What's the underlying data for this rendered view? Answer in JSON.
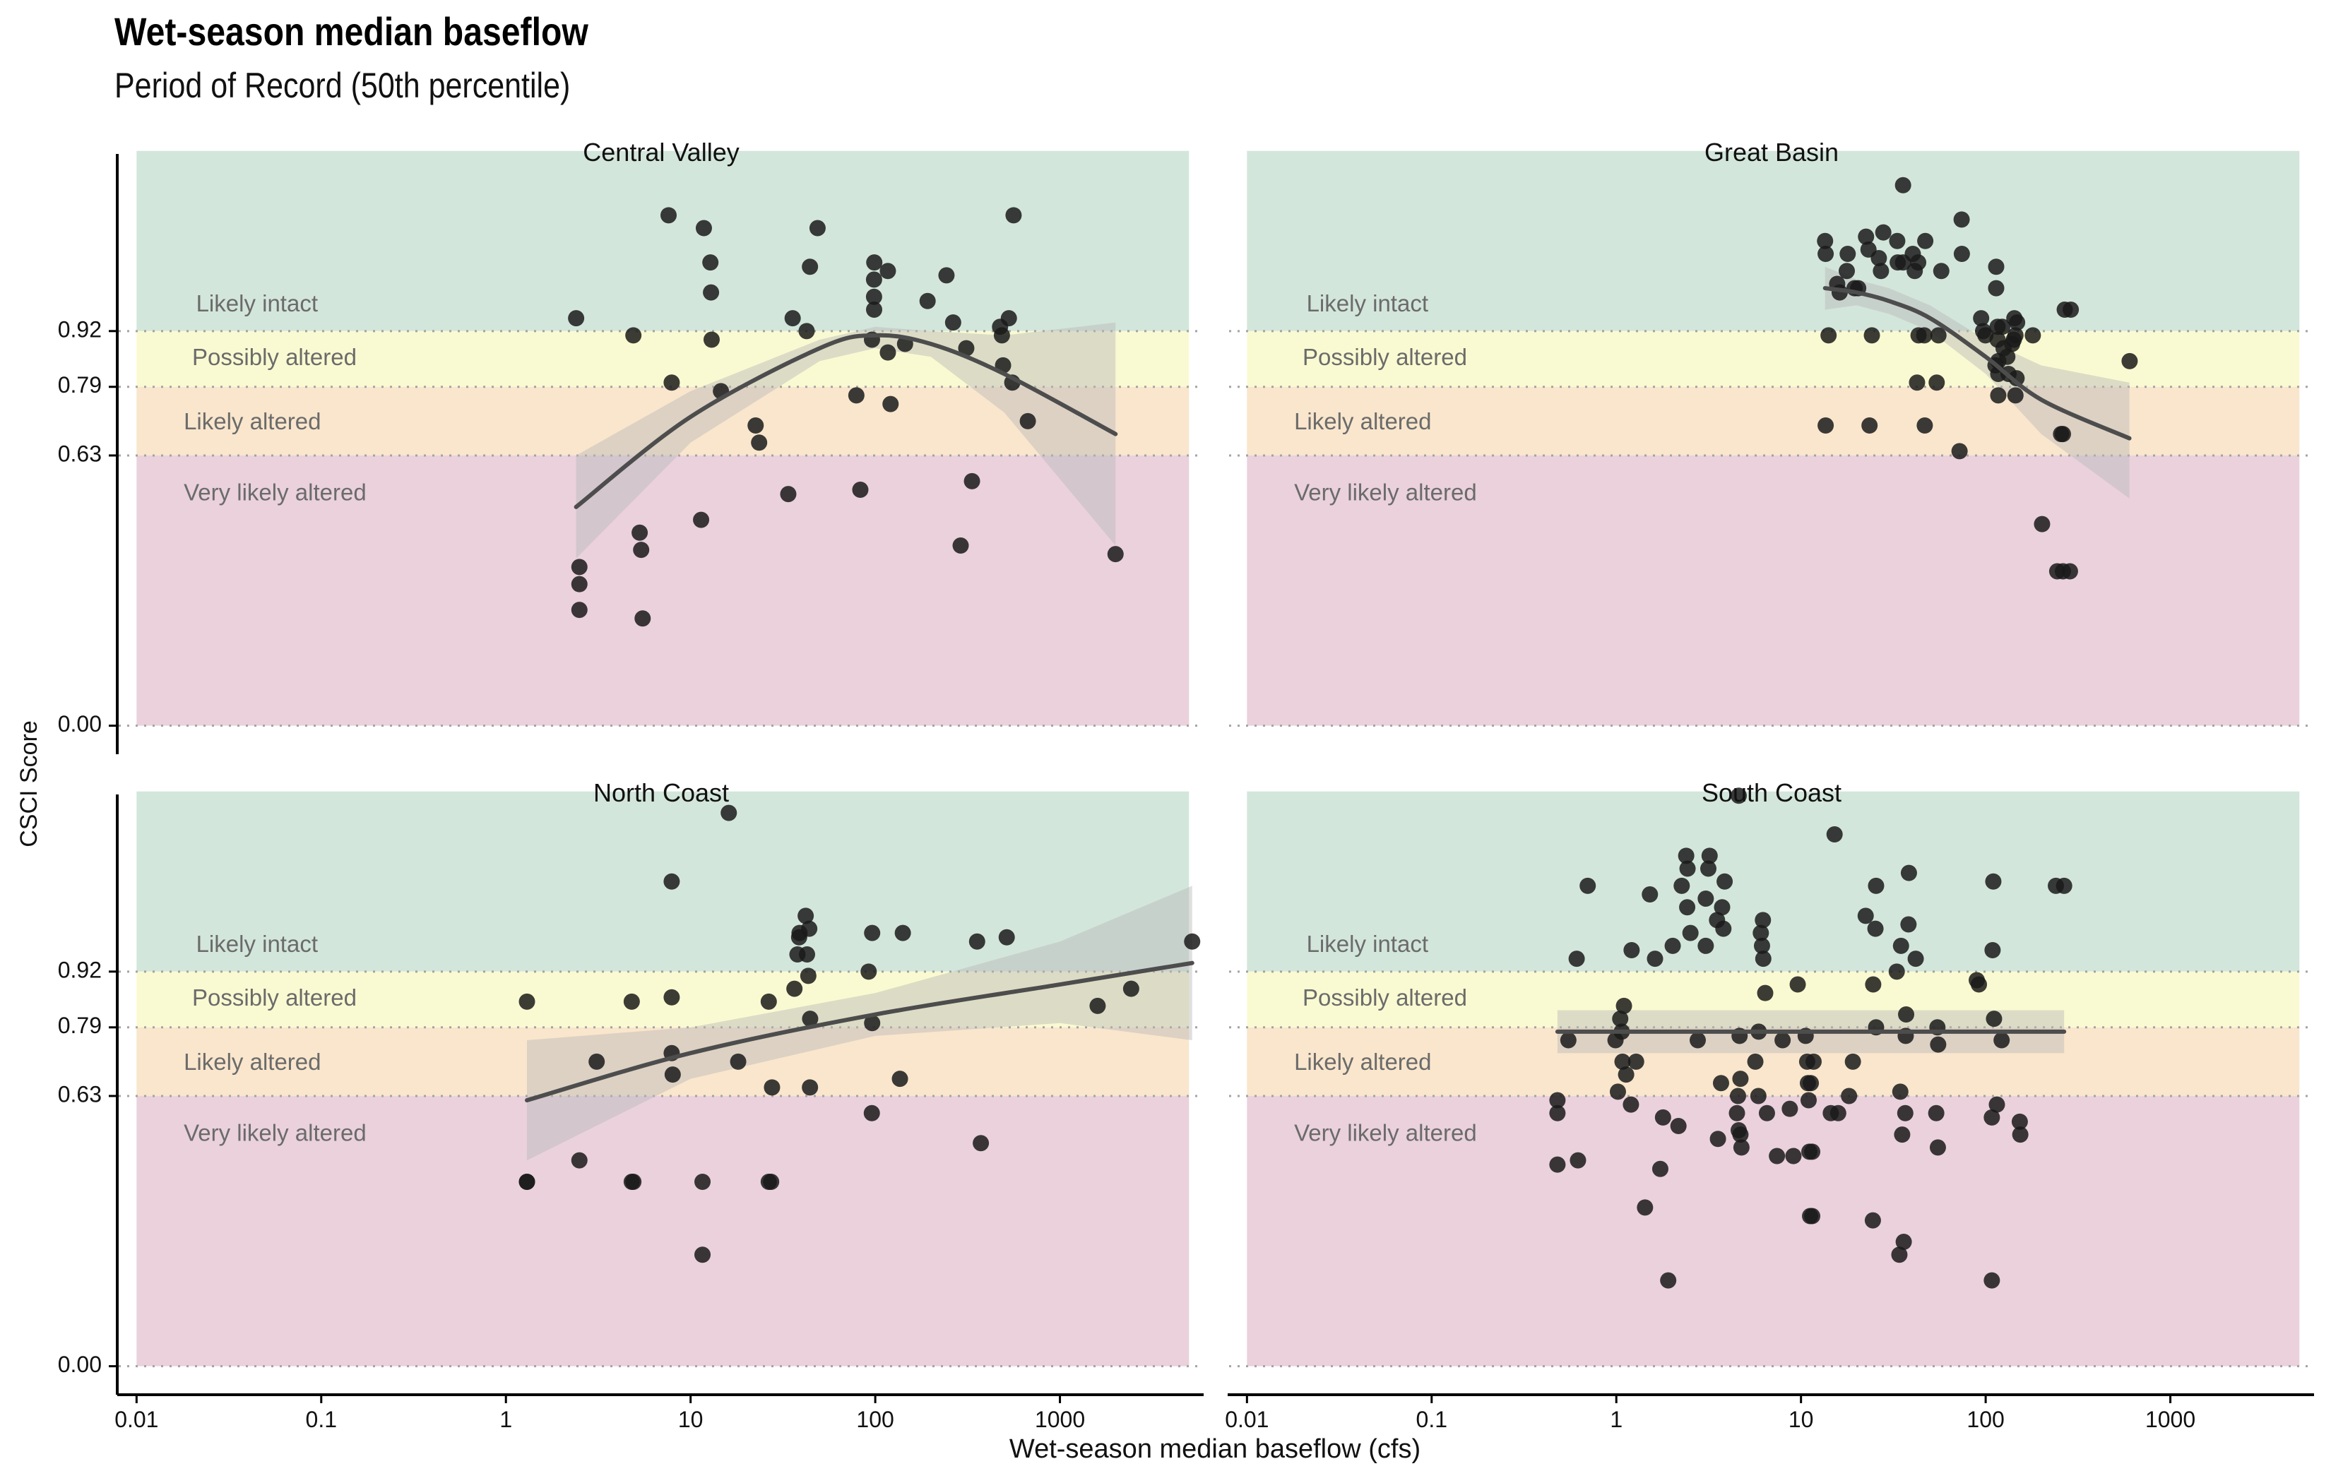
{
  "title": "Wet-season median baseflow",
  "subtitle": "Period of Record (50th percentile)",
  "chart_data": {
    "type": "scatter",
    "xlabel": "Wet-season median baseflow (cfs)",
    "ylabel": "CSCI Score",
    "x_scale": "log10",
    "xlim": [
      0.008,
      6000
    ],
    "x_ticks": [
      0.01,
      0.1,
      1,
      10,
      100,
      1000
    ],
    "x_tick_labels": [
      "0.01",
      "0.1",
      "1",
      "10",
      "100",
      "1000"
    ],
    "ylim": [
      -0.05,
      1.3
    ],
    "y_ticks": [
      0.0,
      0.63,
      0.79,
      0.92
    ],
    "y_tick_labels": [
      "0.00",
      "0.63",
      "0.79",
      "0.92"
    ],
    "thresholds": [
      0.0,
      0.63,
      0.79,
      0.92
    ],
    "zones": [
      {
        "label": "Likely intact",
        "from": 0.92,
        "to": 1.34,
        "color": "#d3e6db"
      },
      {
        "label": "Possibly altered",
        "from": 0.79,
        "to": 0.92,
        "color": "#fafad2"
      },
      {
        "label": "Likely altered",
        "from": 0.63,
        "to": 0.79,
        "color": "#f9e6cc"
      },
      {
        "label": "Very likely altered",
        "from": 0.0,
        "to": 0.63,
        "color": "#ead1dc"
      }
    ],
    "panels": [
      {
        "title": "Central Valley",
        "points": [
          [
            2.4,
            0.95
          ],
          [
            2.5,
            0.37
          ],
          [
            2.5,
            0.33
          ],
          [
            2.5,
            0.27
          ],
          [
            4.9,
            0.91
          ],
          [
            5.3,
            0.45
          ],
          [
            5.4,
            0.41
          ],
          [
            5.5,
            0.25
          ],
          [
            7.6,
            1.19
          ],
          [
            7.9,
            0.8
          ],
          [
            11.4,
            0.48
          ],
          [
            11.8,
            1.16
          ],
          [
            13,
            0.9
          ],
          [
            12.8,
            1.08
          ],
          [
            12.9,
            1.01
          ],
          [
            14.6,
            0.78
          ],
          [
            22.5,
            0.7
          ],
          [
            23.5,
            0.66
          ],
          [
            33.8,
            0.54
          ],
          [
            35.7,
            0.95
          ],
          [
            42.5,
            0.92
          ],
          [
            44.3,
            1.07
          ],
          [
            48.7,
            1.16
          ],
          [
            79,
            0.77
          ],
          [
            83,
            0.55
          ],
          [
            96,
            0.9
          ],
          [
            98.5,
            1.04
          ],
          [
            98.8,
            1.08
          ],
          [
            98.5,
            1.0
          ],
          [
            98.6,
            0.97
          ],
          [
            117,
            0.87
          ],
          [
            117,
            1.06
          ],
          [
            121,
            0.75
          ],
          [
            145,
            0.89
          ],
          [
            192,
            0.99
          ],
          [
            243,
            1.05
          ],
          [
            264,
            0.94
          ],
          [
            311,
            0.88
          ],
          [
            290,
            0.42
          ],
          [
            334,
            0.57
          ],
          [
            474,
            0.93
          ],
          [
            485,
            0.91
          ],
          [
            492,
            0.84
          ],
          [
            529,
            0.95
          ],
          [
            552,
            0.8
          ],
          [
            561,
            1.19
          ],
          [
            670,
            0.71
          ],
          [
            2000,
            0.4
          ]
        ],
        "trend": {
          "x": [
            2.4,
            10,
            50,
            100,
            200,
            500,
            2000
          ],
          "y": [
            0.51,
            0.72,
            0.88,
            0.91,
            0.89,
            0.82,
            0.68
          ]
        },
        "band": {
          "upper": [
            0.63,
            0.78,
            0.9,
            0.93,
            0.92,
            0.91,
            0.94
          ],
          "lower": [
            0.39,
            0.66,
            0.85,
            0.88,
            0.86,
            0.73,
            0.42
          ]
        }
      },
      {
        "title": "Great Basin",
        "points": [
          [
            13.5,
            1.13
          ],
          [
            13.6,
            1.1
          ],
          [
            14.1,
            0.91
          ],
          [
            13.6,
            0.7
          ],
          [
            15.7,
            1.03
          ],
          [
            16.2,
            1.01
          ],
          [
            17.7,
            1.06
          ],
          [
            17.9,
            1.1
          ],
          [
            19.5,
            1.02
          ],
          [
            20.4,
            1.02
          ],
          [
            23.2,
            1.11
          ],
          [
            22.5,
            1.14
          ],
          [
            24.2,
            0.91
          ],
          [
            23.5,
            0.7
          ],
          [
            26.4,
            1.09
          ],
          [
            27.9,
            1.15
          ],
          [
            27.1,
            1.06
          ],
          [
            33.2,
            1.13
          ],
          [
            33.4,
            1.08
          ],
          [
            35.7,
            1.26
          ],
          [
            35.7,
            1.08
          ],
          [
            40.3,
            1.1
          ],
          [
            41.3,
            1.06
          ],
          [
            43.1,
            1.08
          ],
          [
            43.3,
            0.91
          ],
          [
            42.5,
            0.8
          ],
          [
            46.5,
            0.91
          ],
          [
            46.8,
            0.7
          ],
          [
            47.1,
            1.13
          ],
          [
            55.5,
            0.91
          ],
          [
            54.3,
            0.8
          ],
          [
            57.5,
            1.06
          ],
          [
            74.1,
            1.18
          ],
          [
            74.3,
            1.1
          ],
          [
            72.2,
            0.64
          ],
          [
            94.5,
            0.95
          ],
          [
            96.9,
            0.92
          ],
          [
            99.7,
            0.91
          ],
          [
            113,
            0.84
          ],
          [
            114,
            1.07
          ],
          [
            114,
            1.02
          ],
          [
            116,
            0.93
          ],
          [
            116,
            0.9
          ],
          [
            117,
            0.85
          ],
          [
            117,
            0.82
          ],
          [
            117,
            0.77
          ],
          [
            123,
            0.93
          ],
          [
            125,
            0.88
          ],
          [
            131,
            0.86
          ],
          [
            133,
            0.82
          ],
          [
            139,
            0.89
          ],
          [
            142,
            0.9
          ],
          [
            145,
            0.91
          ],
          [
            145,
            0.77
          ],
          [
            148,
            0.94
          ],
          [
            147,
            0.81
          ],
          [
            143,
            0.95
          ],
          [
            180,
            0.91
          ],
          [
            202,
            0.47
          ],
          [
            244,
            0.36
          ],
          [
            262,
            0.36
          ],
          [
            256,
            0.68
          ],
          [
            262,
            0.68
          ],
          [
            268,
            0.97
          ],
          [
            289,
            0.97
          ],
          [
            286,
            0.36
          ],
          [
            602,
            0.85
          ]
        ],
        "trend": {
          "x": [
            13.5,
            20,
            30,
            50,
            100,
            200,
            600
          ],
          "y": [
            1.02,
            1.01,
            0.99,
            0.95,
            0.86,
            0.76,
            0.67
          ]
        },
        "band": {
          "upper": [
            1.07,
            1.04,
            1.02,
            0.98,
            0.9,
            0.84,
            0.8
          ],
          "lower": [
            0.97,
            0.98,
            0.96,
            0.92,
            0.82,
            0.68,
            0.53
          ]
        }
      },
      {
        "title": "North Coast",
        "points": [
          [
            1.3,
            0.85
          ],
          [
            1.3,
            0.43
          ],
          [
            1.3,
            0.43
          ],
          [
            2.5,
            0.48
          ],
          [
            3.1,
            0.71
          ],
          [
            4.8,
            0.85
          ],
          [
            4.9,
            0.43
          ],
          [
            4.8,
            0.43
          ],
          [
            7.9,
            0.86
          ],
          [
            7.9,
            1.13
          ],
          [
            7.9,
            0.73
          ],
          [
            8,
            0.68
          ],
          [
            11.6,
            0.43
          ],
          [
            11.6,
            0.26
          ],
          [
            16.1,
            1.29
          ],
          [
            18.1,
            0.71
          ],
          [
            26.5,
            0.85
          ],
          [
            26.5,
            0.43
          ],
          [
            27.3,
            0.43
          ],
          [
            27.6,
            0.65
          ],
          [
            36.5,
            0.88
          ],
          [
            37.9,
            0.96
          ],
          [
            38.7,
            1.0
          ],
          [
            38.9,
            1.01
          ],
          [
            42.7,
            0.96
          ],
          [
            43.4,
            0.91
          ],
          [
            44.4,
            0.81
          ],
          [
            42,
            1.05
          ],
          [
            43.9,
            1.02
          ],
          [
            44.3,
            0.65
          ],
          [
            92.1,
            0.92
          ],
          [
            95.8,
            0.59
          ],
          [
            96.2,
            1.01
          ],
          [
            96.2,
            0.8
          ],
          [
            136,
            0.67
          ],
          [
            141,
            1.01
          ],
          [
            356,
            0.99
          ],
          [
            373,
            0.52
          ],
          [
            515,
            1.0
          ],
          [
            1600,
            0.84
          ],
          [
            2430,
            0.88
          ],
          [
            5200,
            0.99
          ]
        ],
        "trend": {
          "x": [
            1.3,
            10,
            100,
            1000,
            5200
          ],
          "y": [
            0.62,
            0.73,
            0.82,
            0.89,
            0.94
          ]
        },
        "band": {
          "upper": [
            0.76,
            0.79,
            0.87,
            0.99,
            1.12
          ],
          "lower": [
            0.48,
            0.67,
            0.77,
            0.8,
            0.76
          ]
        }
      },
      {
        "title": "South Coast",
        "points": [
          [
            0.48,
            0.62
          ],
          [
            0.48,
            0.59
          ],
          [
            0.48,
            0.47
          ],
          [
            0.55,
            0.76
          ],
          [
            0.61,
            0.95
          ],
          [
            0.62,
            0.48
          ],
          [
            0.7,
            1.12
          ],
          [
            0.99,
            0.76
          ],
          [
            1.02,
            0.64
          ],
          [
            1.1,
            0.84
          ],
          [
            1.08,
            0.71
          ],
          [
            1.05,
            0.81
          ],
          [
            1.07,
            0.78
          ],
          [
            1.13,
            0.68
          ],
          [
            1.21,
            0.97
          ],
          [
            1.2,
            0.61
          ],
          [
            1.28,
            0.71
          ],
          [
            1.43,
            0.37
          ],
          [
            1.52,
            1.1
          ],
          [
            1.62,
            0.95
          ],
          [
            1.73,
            0.46
          ],
          [
            1.79,
            0.58
          ],
          [
            1.91,
            0.2
          ],
          [
            2.02,
            0.98
          ],
          [
            2.17,
            0.56
          ],
          [
            2.26,
            1.12
          ],
          [
            2.39,
            1.19
          ],
          [
            2.42,
            1.07
          ],
          [
            2.43,
            1.16
          ],
          [
            2.52,
            1.01
          ],
          [
            2.76,
            0.76
          ],
          [
            3.05,
            0.98
          ],
          [
            3.05,
            1.09
          ],
          [
            3.15,
            1.16
          ],
          [
            3.2,
            1.19
          ],
          [
            3.51,
            1.04
          ],
          [
            3.55,
            0.53
          ],
          [
            3.69,
            0.66
          ],
          [
            3.74,
            1.07
          ],
          [
            3.8,
            1.02
          ],
          [
            3.86,
            1.13
          ],
          [
            4.5,
            0.59
          ],
          [
            4.56,
            0.63
          ],
          [
            4.6,
            0.55
          ],
          [
            4.6,
            1.33
          ],
          [
            4.7,
            0.54
          ],
          [
            4.65,
            0.77
          ],
          [
            4.7,
            0.67
          ],
          [
            4.76,
            0.51
          ],
          [
            5.66,
            0.71
          ],
          [
            5.88,
            0.63
          ],
          [
            5.9,
            0.78
          ],
          [
            6.06,
            1.01
          ],
          [
            6.15,
            0.98
          ],
          [
            6.22,
            1.04
          ],
          [
            6.25,
            0.95
          ],
          [
            6.4,
            0.87
          ],
          [
            6.54,
            0.59
          ],
          [
            7.41,
            0.49
          ],
          [
            7.95,
            0.76
          ],
          [
            8.7,
            0.6
          ],
          [
            9.1,
            0.49
          ],
          [
            9.6,
            0.89
          ],
          [
            10.6,
            0.77
          ],
          [
            10.8,
            0.71
          ],
          [
            10.9,
            0.66
          ],
          [
            11,
            0.62
          ],
          [
            11.1,
            0.5
          ],
          [
            11.2,
            0.35
          ],
          [
            11.5,
            0.35
          ],
          [
            11.5,
            0.5
          ],
          [
            11.3,
            0.66
          ],
          [
            11.7,
            0.71
          ],
          [
            14.5,
            0.59
          ],
          [
            15.2,
            1.24
          ],
          [
            15.9,
            0.59
          ],
          [
            18.2,
            0.63
          ],
          [
            19.1,
            0.71
          ],
          [
            22.4,
            1.05
          ],
          [
            24.6,
            0.89
          ],
          [
            24.5,
            0.34
          ],
          [
            25.3,
            1.02
          ],
          [
            25.5,
            0.79
          ],
          [
            25.5,
            1.12
          ],
          [
            33,
            0.92
          ],
          [
            34.1,
            0.26
          ],
          [
            34.5,
            0.64
          ],
          [
            34.8,
            0.98
          ],
          [
            35.3,
            0.54
          ],
          [
            36.7,
            0.59
          ],
          [
            37.1,
            0.82
          ],
          [
            36.9,
            0.77
          ],
          [
            36,
            0.29
          ],
          [
            38.4,
            1.15
          ],
          [
            38.2,
            1.03
          ],
          [
            41.8,
            0.95
          ],
          [
            54,
            0.59
          ],
          [
            54.8,
            0.79
          ],
          [
            55.1,
            0.51
          ],
          [
            55.3,
            0.75
          ],
          [
            89.5,
            0.9
          ],
          [
            91.9,
            0.89
          ],
          [
            108,
            0.58
          ],
          [
            108,
            0.2
          ],
          [
            109,
            0.97
          ],
          [
            110,
            1.13
          ],
          [
            111,
            0.81
          ],
          [
            115,
            0.61
          ],
          [
            122,
            0.76
          ],
          [
            153,
            0.57
          ],
          [
            154,
            0.54
          ],
          [
            240,
            1.12
          ],
          [
            266,
            1.12
          ]
        ],
        "trend": {
          "x": [
            0.48,
            266
          ],
          "y": [
            0.78,
            0.78
          ]
        },
        "band": {
          "upper": [
            0.83,
            0.83
          ],
          "lower": [
            0.73,
            0.73
          ]
        }
      }
    ]
  }
}
